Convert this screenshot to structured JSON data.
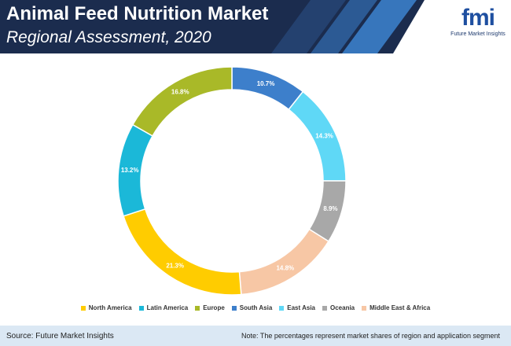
{
  "header": {
    "title": "Animal Feed Nutrition Market",
    "subtitle": "Regional Assessment, 2020"
  },
  "logo": {
    "mark": "fmi",
    "text": "Future Market Insights"
  },
  "chart_data": {
    "type": "donut",
    "categories": [
      "North America",
      "Latin America",
      "Europe",
      "South Asia",
      "East Asia",
      "Oceania",
      "Middle East & Africa"
    ],
    "values": [
      21.3,
      13.2,
      16.8,
      10.7,
      14.3,
      8.9,
      14.8
    ],
    "value_labels": [
      "21.3%",
      "13.2%",
      "16.8%",
      "10.7%",
      "14.3%",
      "8.9%",
      "14.8%"
    ],
    "colors": [
      "#ffcc00",
      "#1bb8d8",
      "#a9b928",
      "#3d7fcb",
      "#5fd8f6",
      "#a8a8a8",
      "#f7c7a5"
    ]
  },
  "footer": {
    "source": "Source: Future Market Insights",
    "note": "Note: The percentages represent market shares of region and application segment"
  }
}
